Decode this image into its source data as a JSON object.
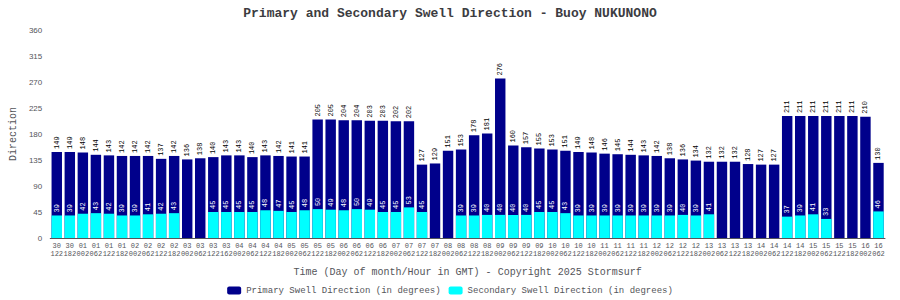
{
  "chart_data": {
    "type": "bar",
    "title": "Primary and Secondary Swell Direction - Buoy NUKUNONO",
    "xlabel": "Time (Day of month/Hour in GMT) - Copyright 2025 Stormsurf",
    "ylabel": "Direction",
    "categories": [
      "30\n122",
      "30\n182",
      "01\n002",
      "01\n062",
      "01\n122",
      "01\n182",
      "02\n002",
      "02\n062",
      "02\n122",
      "02\n182",
      "03\n002",
      "03\n062",
      "03\n122",
      "03\n162",
      "04\n002",
      "04\n062",
      "04\n122",
      "04\n182",
      "05\n002",
      "05\n062",
      "05\n122",
      "05\n182",
      "06\n002",
      "06\n062",
      "06\n122",
      "06\n182",
      "07\n002",
      "07\n062",
      "07\n122",
      "07\n182",
      "08\n002",
      "08\n062",
      "08\n122",
      "08\n182",
      "09\n002",
      "09\n062",
      "09\n122",
      "09\n182",
      "10\n002",
      "10\n062",
      "10\n122",
      "10\n182",
      "11\n002",
      "11\n062",
      "11\n122",
      "11\n182",
      "12\n002",
      "12\n062",
      "12\n122",
      "12\n182",
      "13\n002",
      "13\n062",
      "13\n122",
      "13\n182",
      "14\n002",
      "14\n062",
      "14\n122",
      "14\n182",
      "15\n002",
      "15\n062",
      "15\n122",
      "15\n182",
      "16\n002",
      "16\n062"
    ],
    "series": [
      {
        "name": "Primary Swell Direction (in degrees)",
        "color": "#00008B",
        "values": [
          149,
          149,
          148,
          144,
          143,
          142,
          142,
          142,
          137,
          142,
          136,
          138,
          140,
          143,
          143,
          140,
          143,
          142,
          141,
          141,
          205,
          205,
          204,
          204,
          203,
          203,
          202,
          202,
          127,
          129,
          151,
          153,
          178,
          181,
          276,
          160,
          157,
          155,
          153,
          151,
          149,
          148,
          146,
          145,
          144,
          143,
          142,
          138,
          136,
          134,
          132,
          132,
          132,
          128,
          127,
          127,
          211,
          211,
          211,
          211,
          211,
          211,
          210,
          130
        ]
      },
      {
        "name": "Secondary Swell Direction (in degrees)",
        "color": "#00FFFF",
        "values": [
          39,
          39,
          42,
          43,
          42,
          39,
          39,
          41,
          42,
          43,
          null,
          null,
          45,
          45,
          45,
          45,
          48,
          47,
          45,
          48,
          50,
          49,
          48,
          50,
          49,
          45,
          45,
          53,
          45,
          null,
          null,
          39,
          39,
          40,
          40,
          40,
          40,
          45,
          45,
          43,
          39,
          39,
          39,
          39,
          39,
          39,
          39,
          39,
          40,
          39,
          41,
          null,
          null,
          null,
          null,
          null,
          37,
          39,
          41,
          33,
          null,
          null,
          null,
          46
        ]
      }
    ],
    "ylim": [
      0,
      360
    ],
    "yticks": [
      0,
      45,
      90,
      135,
      180,
      225,
      270,
      315,
      360
    ],
    "data_labels": true,
    "legend": "bottom",
    "grid": false
  }
}
